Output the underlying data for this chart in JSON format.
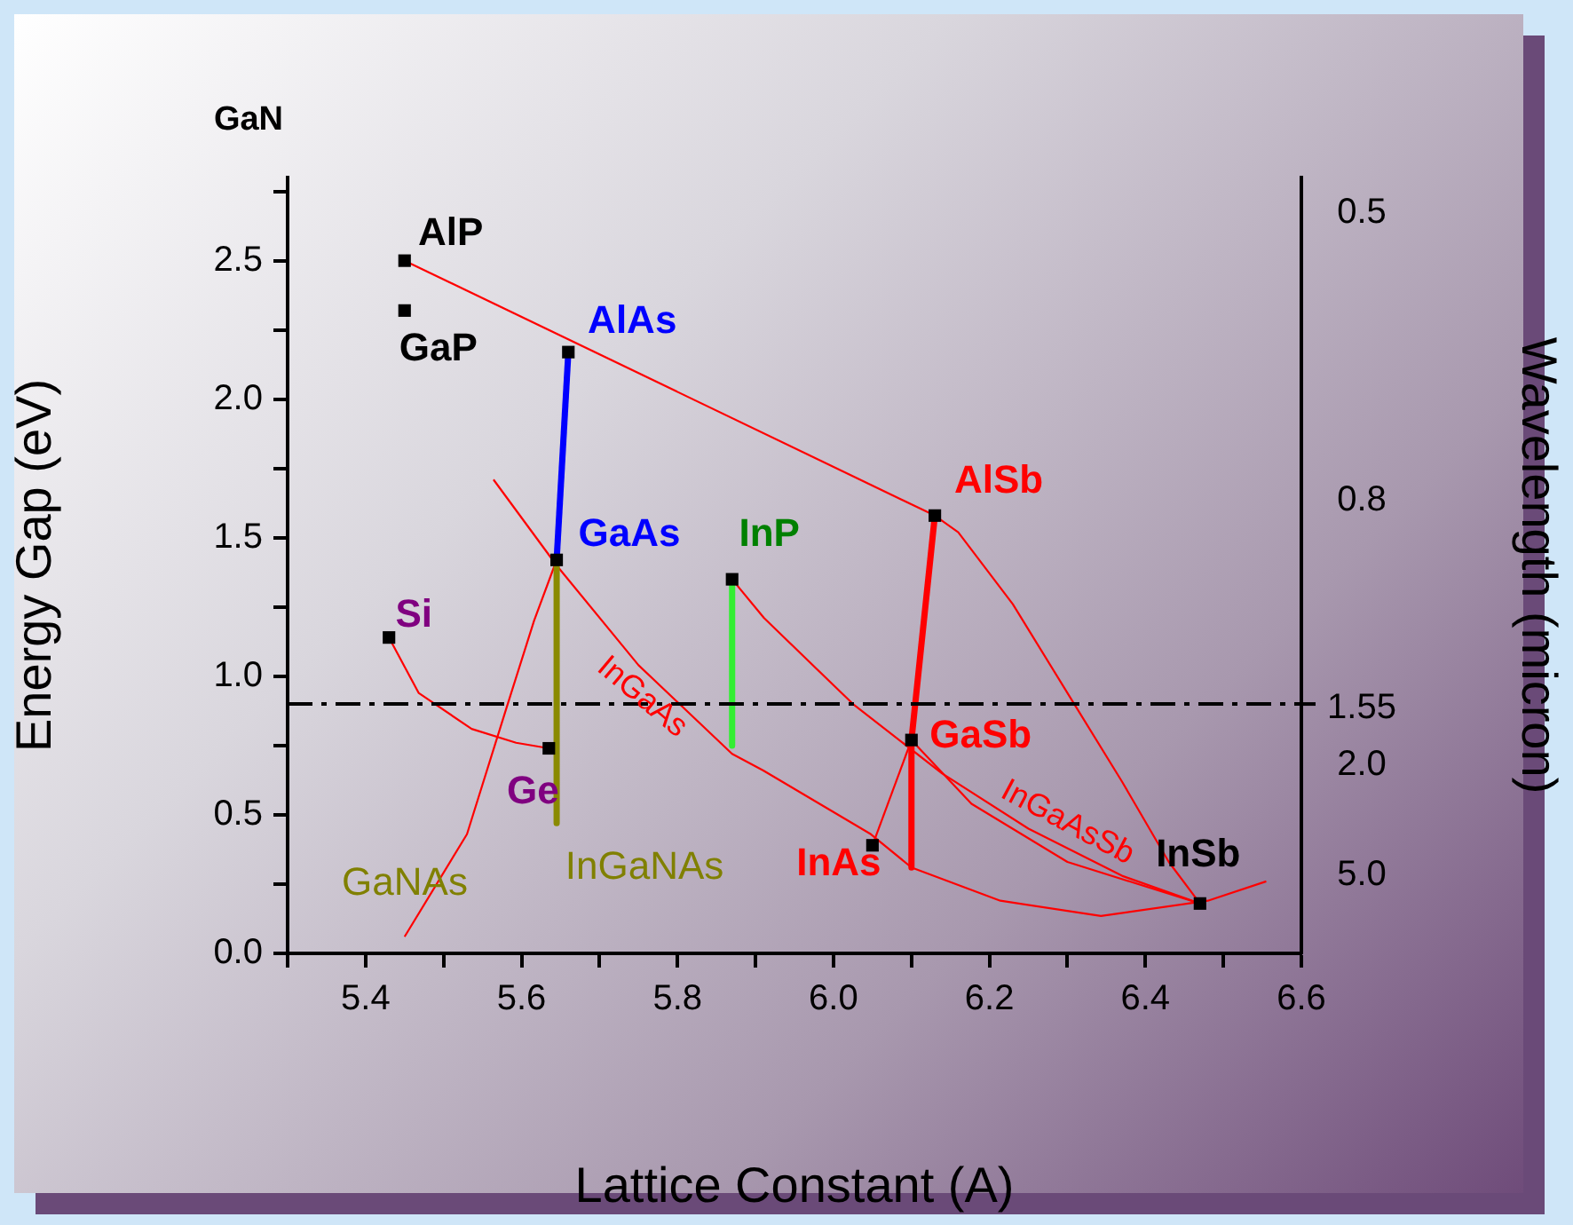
{
  "chart_data": {
    "type": "line",
    "xlabel": "Lattice Constant (A)",
    "ylabel": "Energy Gap (eV)",
    "y2label": "Wavelength (micron)",
    "xlim": [
      5.3,
      6.6
    ],
    "xticks": [
      {
        "value": 5.3,
        "label": null
      },
      5.4,
      {
        "value": 5.5,
        "label": null
      },
      5.6,
      {
        "value": 5.7,
        "label": null
      },
      5.8,
      {
        "value": 5.9,
        "label": null
      },
      {
        "value": 6.0,
        "label": "6.0"
      },
      {
        "value": 6.1,
        "label": null
      },
      6.2,
      {
        "value": 6.3,
        "label": null
      },
      6.4,
      {
        "value": 6.5,
        "label": null
      },
      6.6
    ],
    "ylim": [
      0,
      2.8
    ],
    "yticks": [
      {
        "value": 0,
        "label": "0.0"
      },
      {
        "value": 0.25,
        "label": null
      },
      0.5,
      {
        "value": 0.75,
        "label": null
      },
      {
        "value": 1,
        "label": "1.0"
      },
      {
        "value": 1.25,
        "label": null
      },
      1.5,
      {
        "value": 1.75,
        "label": null
      },
      {
        "value": 2,
        "label": "2.0"
      },
      {
        "value": 2.25,
        "label": null
      },
      2.5,
      {
        "value": 2.75,
        "label": null
      }
    ],
    "grid": false,
    "legend": false,
    "marker": "none",
    "series": [
      {
        "color": "#0000ff",
        "x": [
          5.66,
          5.645
        ],
        "values": [
          2.17,
          1.42
        ]
      },
      {
        "color": "#8a8a00",
        "x": [
          5.645,
          5.645
        ],
        "values": [
          1.42,
          0.47
        ]
      },
      {
        "color": "#33ee33",
        "x": [
          5.87,
          5.87
        ],
        "values": [
          1.35,
          0.75
        ]
      },
      {
        "color": "#ff0000",
        "x": [
          6.13,
          6.1
        ],
        "values": [
          1.58,
          0.77
        ]
      },
      {
        "color": "#ff0000",
        "x": [
          6.1,
          6.1
        ],
        "values": [
          0.77,
          0.31
        ]
      },
      {
        "color": "#ff0000",
        "x": [
          5.45,
          6.13
        ],
        "values": [
          2.5,
          1.58
        ]
      },
      {
        "color": "#ff0000",
        "x": [
          6.13,
          6.16,
          6.23,
          6.3,
          6.37,
          6.43,
          6.47
        ],
        "values": [
          1.58,
          1.52,
          1.26,
          0.94,
          0.62,
          0.33,
          0.18
        ]
      },
      {
        "color": "#ff0000",
        "x": [
          5.564,
          5.645,
          5.75,
          5.87,
          5.91,
          6.048,
          6.1,
          6.214,
          6.343,
          6.48,
          6.555
        ],
        "values": [
          1.71,
          1.4,
          1.04,
          0.72,
          0.66,
          0.43,
          0.31,
          0.19,
          0.135,
          0.19,
          0.26
        ]
      },
      {
        "color": "#ff0000",
        "x": [
          5.87,
          5.911,
          6.025,
          6.139,
          6.25,
          6.37,
          6.47
        ],
        "values": [
          1.35,
          1.21,
          0.9,
          0.65,
          0.45,
          0.28,
          0.18
        ]
      },
      {
        "color": "#ff0000",
        "x": [
          6.1,
          6.177,
          6.3,
          6.47
        ],
        "values": [
          0.77,
          0.54,
          0.33,
          0.18
        ]
      },
      {
        "color": "#ff0000",
        "x": [
          6.1,
          6.05
        ],
        "values": [
          0.77,
          0.39
        ]
      },
      {
        "color": "#ff0000",
        "x": [
          5.45,
          5.53,
          5.58,
          5.616,
          5.645
        ],
        "values": [
          0.06,
          0.43,
          0.88,
          1.2,
          1.42
        ]
      },
      {
        "color": "#ff0000",
        "x": [
          5.43,
          5.468,
          5.536,
          5.593,
          5.635
        ],
        "values": [
          1.14,
          0.94,
          0.81,
          0.76,
          0.74
        ]
      },
      {
        "type": "scatter",
        "marker": "square",
        "color": "#000000",
        "x": [
          5.45,
          5.45,
          5.66,
          5.645,
          5.43,
          5.635,
          5.87,
          6.13,
          6.1,
          6.05,
          6.47
        ],
        "values": [
          2.5,
          2.32,
          2.17,
          1.42,
          1.14,
          0.74,
          1.35,
          1.58,
          0.77,
          0.39,
          0.18
        ]
      }
    ],
    "ref_lines": [
      {
        "axis": "y",
        "value": 0.9,
        "color": "#000000",
        "line_style": "dashed"
      }
    ],
    "annotations": [
      "GaN",
      "0.5",
      "0.8",
      "1.55",
      "2.0",
      "5.0",
      "GaNAs",
      "InGaNAs",
      {
        "text": "AlP",
        "x": 5.45,
        "y": 2.5
      },
      {
        "text": "GaP",
        "x": 5.45,
        "y": 2.32
      },
      {
        "text": "AlAs",
        "x": 5.66,
        "y": 2.17
      },
      {
        "text": "GaAs",
        "x": 5.645,
        "y": 1.42
      },
      {
        "text": "InP",
        "x": 5.87,
        "y": 1.35
      },
      {
        "text": "Si",
        "x": 5.43,
        "y": 1.14
      },
      {
        "text": "Ge",
        "x": 5.635,
        "y": 0.74
      },
      {
        "text": "AlSb",
        "x": 6.13,
        "y": 1.58
      },
      {
        "text": "GaSb",
        "x": 6.1,
        "y": 0.77
      },
      {
        "text": "InAs",
        "x": 6.05,
        "y": 0.39
      },
      {
        "text": "InSb",
        "x": 6.47,
        "y": 0.18
      },
      {
        "text": "InGaAs",
        "x": 5.75,
        "y": 1.04
      },
      {
        "text": "InGaAsSb",
        "x": 6.3,
        "y": 0.33
      }
    ]
  }
}
